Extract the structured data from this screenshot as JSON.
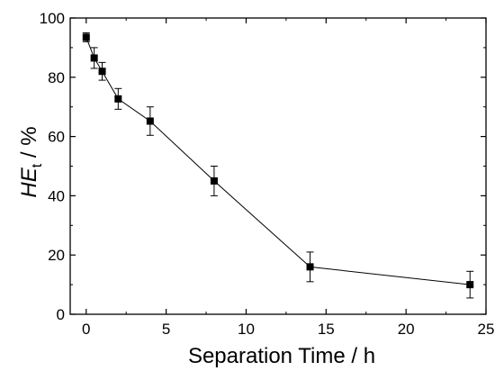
{
  "chart_data": {
    "type": "line",
    "title": "",
    "xlabel": "Separation Time / h",
    "ylabel": {
      "main": "HE",
      "sub": "t",
      "suffix": " / %"
    },
    "xlim": [
      -1,
      25
    ],
    "ylim": [
      0,
      100
    ],
    "xticks": [
      0,
      5,
      10,
      15,
      20,
      25
    ],
    "yticks": [
      0,
      20,
      40,
      60,
      80,
      100
    ],
    "grid": false,
    "legend": "none",
    "series": [
      {
        "marker": "square",
        "color": "#000000",
        "x": [
          0,
          0.5,
          1,
          2,
          4,
          8,
          14,
          24
        ],
        "y": [
          93.5,
          86.5,
          82,
          72.7,
          65.2,
          45,
          16,
          10
        ],
        "error": [
          1.5,
          3.5,
          3,
          3.5,
          4.8,
          5,
          5,
          4.5
        ]
      }
    ]
  }
}
